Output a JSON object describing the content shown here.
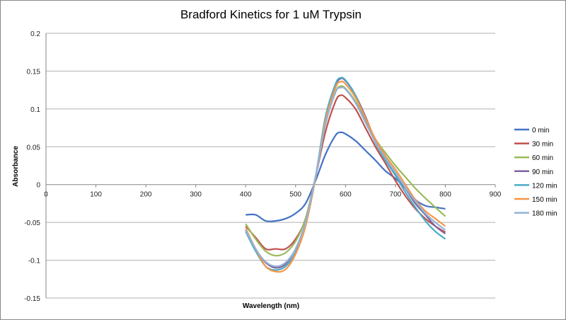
{
  "chart_data": {
    "type": "line",
    "title": "Bradford Kinetics for 1 uM Trypsin",
    "xlabel": "Wavelength (nm)",
    "ylabel": "Absorbance",
    "xlim": [
      0,
      900
    ],
    "ylim": [
      -0.15,
      0.2
    ],
    "xticks": [
      "0",
      "100",
      "200",
      "300",
      "400",
      "500",
      "600",
      "700",
      "800",
      "900"
    ],
    "yticks": [
      "0.2",
      "0.15",
      "0.1",
      "0.05",
      "0",
      "-0.05",
      "-0.1",
      "-0.15"
    ],
    "grid": "horizontal",
    "legend": "right",
    "x": [
      400,
      420,
      440,
      460,
      480,
      500,
      520,
      540,
      560,
      580,
      590,
      600,
      620,
      640,
      660,
      680,
      700,
      720,
      740,
      760,
      780,
      800
    ],
    "series": [
      {
        "name": "0 min",
        "color": "#4472C4",
        "values": [
          -0.04,
          -0.04,
          -0.048,
          -0.048,
          -0.045,
          -0.038,
          -0.025,
          0.005,
          0.04,
          0.065,
          0.069,
          0.067,
          0.058,
          0.045,
          0.032,
          0.018,
          0.008,
          -0.005,
          -0.02,
          -0.028,
          -0.03,
          -0.032
        ]
      },
      {
        "name": "30 min",
        "color": "#C0504D",
        "values": [
          -0.055,
          -0.07,
          -0.085,
          -0.085,
          -0.085,
          -0.072,
          -0.045,
          0.01,
          0.07,
          0.11,
          0.118,
          0.115,
          0.1,
          0.075,
          0.05,
          0.028,
          0.005,
          -0.015,
          -0.032,
          -0.045,
          -0.055,
          -0.063
        ]
      },
      {
        "name": "60 min",
        "color": "#9BBB59",
        "values": [
          -0.052,
          -0.072,
          -0.088,
          -0.094,
          -0.09,
          -0.075,
          -0.045,
          0.01,
          0.08,
          0.122,
          0.13,
          0.127,
          0.11,
          0.085,
          0.06,
          0.042,
          0.025,
          0.01,
          -0.005,
          -0.018,
          -0.03,
          -0.042
        ]
      },
      {
        "name": "90 min",
        "color": "#8064A2",
        "values": [
          -0.06,
          -0.085,
          -0.103,
          -0.11,
          -0.105,
          -0.085,
          -0.05,
          0.01,
          0.085,
          0.13,
          0.14,
          0.137,
          0.118,
          0.09,
          0.058,
          0.035,
          0.015,
          -0.005,
          -0.025,
          -0.04,
          -0.055,
          -0.065
        ]
      },
      {
        "name": "120 min",
        "color": "#4BACC6",
        "values": [
          -0.062,
          -0.088,
          -0.108,
          -0.113,
          -0.108,
          -0.09,
          -0.052,
          0.01,
          0.09,
          0.133,
          0.141,
          0.138,
          0.118,
          0.085,
          0.055,
          0.032,
          0.012,
          -0.01,
          -0.03,
          -0.048,
          -0.062,
          -0.072
        ]
      },
      {
        "name": "150 min",
        "color": "#F79646",
        "values": [
          -0.058,
          -0.085,
          -0.108,
          -0.115,
          -0.112,
          -0.092,
          -0.055,
          0.008,
          0.085,
          0.128,
          0.136,
          0.133,
          0.115,
          0.088,
          0.06,
          0.038,
          0.02,
          0.0,
          -0.02,
          -0.035,
          -0.045,
          -0.055
        ]
      },
      {
        "name": "180 min",
        "color": "#95B3D7",
        "values": [
          -0.06,
          -0.085,
          -0.102,
          -0.108,
          -0.103,
          -0.085,
          -0.05,
          0.01,
          0.08,
          0.122,
          0.128,
          0.126,
          0.108,
          0.082,
          0.056,
          0.035,
          0.016,
          -0.004,
          -0.022,
          -0.038,
          -0.05,
          -0.06
        ]
      }
    ]
  }
}
